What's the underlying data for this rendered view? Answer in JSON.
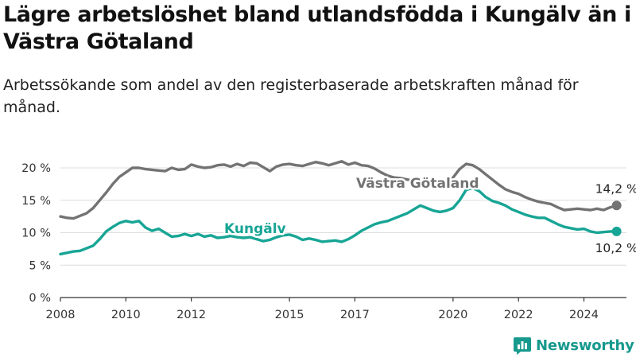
{
  "header": {
    "title": "Lägre arbetslöshet bland utlandsfödda i Kungälv än i Västra Götaland",
    "subtitle": "Arbetssökande som andel av den registerbaserade arbetskraften månad för månad."
  },
  "footer": {
    "brand": "Newsworthy",
    "brand_icon": "bar-chart-logo-icon"
  },
  "colors": {
    "kungalv": "#17a595",
    "vastra": "#737373",
    "grid": "#dddddd",
    "axis": "#333333",
    "brand": "#17998e"
  },
  "chart_data": {
    "type": "line",
    "title": "Lägre arbetslöshet bland utlandsfödda i Kungälv än i Västra Götaland",
    "subtitle": "Arbetssökande som andel av den registerbaserade arbetskraften månad för månad.",
    "xlabel": "",
    "ylabel": "",
    "xlim": [
      2008,
      2025.3
    ],
    "ylim": [
      0,
      20
    ],
    "x_ticks": [
      2008,
      2010,
      2012,
      2015,
      2017,
      2020,
      2022,
      2024
    ],
    "x_tick_labels": [
      "2008",
      "2010",
      "2012",
      "2015",
      "2017",
      "2020",
      "2022",
      "2024"
    ],
    "y_ticks": [
      0,
      5,
      10,
      15,
      20
    ],
    "y_tick_labels": [
      "0 %",
      "5 %",
      "10 %",
      "15 %",
      "20 %"
    ],
    "grid": true,
    "legend": "inline labels",
    "series": [
      {
        "name": "Västra Götaland",
        "color": "#737373",
        "end_label": "14,2 %",
        "points": [
          [
            2008.0,
            12.5
          ],
          [
            2008.2,
            12.3
          ],
          [
            2008.4,
            12.2
          ],
          [
            2008.6,
            12.6
          ],
          [
            2008.8,
            13.0
          ],
          [
            2009.0,
            13.8
          ],
          [
            2009.2,
            15.0
          ],
          [
            2009.4,
            16.2
          ],
          [
            2009.6,
            17.5
          ],
          [
            2009.8,
            18.6
          ],
          [
            2010.0,
            19.3
          ],
          [
            2010.2,
            20.0
          ],
          [
            2010.4,
            20.0
          ],
          [
            2010.6,
            19.8
          ],
          [
            2010.8,
            19.7
          ],
          [
            2011.0,
            19.6
          ],
          [
            2011.2,
            19.5
          ],
          [
            2011.4,
            20.0
          ],
          [
            2011.6,
            19.7
          ],
          [
            2011.8,
            19.8
          ],
          [
            2012.0,
            20.5
          ],
          [
            2012.2,
            20.2
          ],
          [
            2012.4,
            20.0
          ],
          [
            2012.6,
            20.1
          ],
          [
            2012.8,
            20.4
          ],
          [
            2013.0,
            20.5
          ],
          [
            2013.2,
            20.2
          ],
          [
            2013.4,
            20.6
          ],
          [
            2013.6,
            20.3
          ],
          [
            2013.8,
            20.8
          ],
          [
            2014.0,
            20.7
          ],
          [
            2014.2,
            20.1
          ],
          [
            2014.4,
            19.5
          ],
          [
            2014.6,
            20.2
          ],
          [
            2014.8,
            20.5
          ],
          [
            2015.0,
            20.6
          ],
          [
            2015.2,
            20.4
          ],
          [
            2015.4,
            20.3
          ],
          [
            2015.6,
            20.6
          ],
          [
            2015.8,
            20.9
          ],
          [
            2016.0,
            20.7
          ],
          [
            2016.2,
            20.4
          ],
          [
            2016.4,
            20.7
          ],
          [
            2016.6,
            21.0
          ],
          [
            2016.8,
            20.5
          ],
          [
            2017.0,
            20.8
          ],
          [
            2017.2,
            20.4
          ],
          [
            2017.4,
            20.3
          ],
          [
            2017.6,
            19.9
          ],
          [
            2017.8,
            19.3
          ],
          [
            2018.0,
            18.8
          ],
          [
            2018.2,
            18.5
          ],
          [
            2018.4,
            18.4
          ],
          [
            2018.6,
            18.2
          ],
          [
            2018.8,
            18.0
          ],
          [
            2019.0,
            17.8
          ],
          [
            2019.2,
            17.6
          ],
          [
            2019.4,
            17.5
          ],
          [
            2019.6,
            17.3
          ],
          [
            2019.8,
            17.5
          ],
          [
            2020.0,
            18.5
          ],
          [
            2020.2,
            19.8
          ],
          [
            2020.4,
            20.6
          ],
          [
            2020.6,
            20.4
          ],
          [
            2020.8,
            19.8
          ],
          [
            2021.0,
            19.0
          ],
          [
            2021.2,
            18.2
          ],
          [
            2021.4,
            17.4
          ],
          [
            2021.6,
            16.7
          ],
          [
            2021.8,
            16.3
          ],
          [
            2022.0,
            16.0
          ],
          [
            2022.2,
            15.5
          ],
          [
            2022.4,
            15.1
          ],
          [
            2022.6,
            14.8
          ],
          [
            2022.8,
            14.6
          ],
          [
            2023.0,
            14.4
          ],
          [
            2023.2,
            13.9
          ],
          [
            2023.4,
            13.5
          ],
          [
            2023.6,
            13.6
          ],
          [
            2023.8,
            13.7
          ],
          [
            2024.0,
            13.6
          ],
          [
            2024.2,
            13.5
          ],
          [
            2024.4,
            13.7
          ],
          [
            2024.6,
            13.5
          ],
          [
            2024.8,
            13.9
          ],
          [
            2025.0,
            14.2
          ]
        ]
      },
      {
        "name": "Kungälv",
        "color": "#17a595",
        "end_label": "10,2 %",
        "points": [
          [
            2008.0,
            6.7
          ],
          [
            2008.2,
            6.9
          ],
          [
            2008.4,
            7.1
          ],
          [
            2008.6,
            7.2
          ],
          [
            2008.8,
            7.6
          ],
          [
            2009.0,
            8.0
          ],
          [
            2009.2,
            9.0
          ],
          [
            2009.4,
            10.2
          ],
          [
            2009.6,
            10.9
          ],
          [
            2009.8,
            11.5
          ],
          [
            2010.0,
            11.8
          ],
          [
            2010.2,
            11.6
          ],
          [
            2010.4,
            11.8
          ],
          [
            2010.6,
            10.8
          ],
          [
            2010.8,
            10.3
          ],
          [
            2011.0,
            10.6
          ],
          [
            2011.2,
            10.0
          ],
          [
            2011.4,
            9.4
          ],
          [
            2011.6,
            9.5
          ],
          [
            2011.8,
            9.8
          ],
          [
            2012.0,
            9.5
          ],
          [
            2012.2,
            9.8
          ],
          [
            2012.4,
            9.4
          ],
          [
            2012.6,
            9.6
          ],
          [
            2012.8,
            9.2
          ],
          [
            2013.0,
            9.3
          ],
          [
            2013.2,
            9.5
          ],
          [
            2013.4,
            9.3
          ],
          [
            2013.6,
            9.2
          ],
          [
            2013.8,
            9.3
          ],
          [
            2014.0,
            9.0
          ],
          [
            2014.2,
            8.7
          ],
          [
            2014.4,
            8.9
          ],
          [
            2014.6,
            9.3
          ],
          [
            2014.8,
            9.6
          ],
          [
            2015.0,
            9.7
          ],
          [
            2015.2,
            9.4
          ],
          [
            2015.4,
            8.9
          ],
          [
            2015.6,
            9.1
          ],
          [
            2015.8,
            8.9
          ],
          [
            2016.0,
            8.6
          ],
          [
            2016.2,
            8.7
          ],
          [
            2016.4,
            8.8
          ],
          [
            2016.6,
            8.6
          ],
          [
            2016.8,
            9.0
          ],
          [
            2017.0,
            9.6
          ],
          [
            2017.2,
            10.3
          ],
          [
            2017.4,
            10.8
          ],
          [
            2017.6,
            11.3
          ],
          [
            2017.8,
            11.6
          ],
          [
            2018.0,
            11.8
          ],
          [
            2018.2,
            12.2
          ],
          [
            2018.4,
            12.6
          ],
          [
            2018.6,
            13.0
          ],
          [
            2018.8,
            13.6
          ],
          [
            2019.0,
            14.2
          ],
          [
            2019.2,
            13.8
          ],
          [
            2019.4,
            13.4
          ],
          [
            2019.6,
            13.2
          ],
          [
            2019.8,
            13.4
          ],
          [
            2020.0,
            13.8
          ],
          [
            2020.2,
            15.0
          ],
          [
            2020.4,
            16.6
          ],
          [
            2020.6,
            16.9
          ],
          [
            2020.8,
            16.4
          ],
          [
            2021.0,
            15.5
          ],
          [
            2021.2,
            14.9
          ],
          [
            2021.4,
            14.6
          ],
          [
            2021.6,
            14.2
          ],
          [
            2021.8,
            13.6
          ],
          [
            2022.0,
            13.2
          ],
          [
            2022.2,
            12.8
          ],
          [
            2022.4,
            12.5
          ],
          [
            2022.6,
            12.3
          ],
          [
            2022.8,
            12.3
          ],
          [
            2023.0,
            11.8
          ],
          [
            2023.2,
            11.3
          ],
          [
            2023.4,
            10.9
          ],
          [
            2023.6,
            10.7
          ],
          [
            2023.8,
            10.5
          ],
          [
            2024.0,
            10.6
          ],
          [
            2024.2,
            10.2
          ],
          [
            2024.4,
            10.0
          ],
          [
            2024.6,
            10.1
          ],
          [
            2024.8,
            10.2
          ],
          [
            2025.0,
            10.2
          ]
        ]
      }
    ]
  }
}
